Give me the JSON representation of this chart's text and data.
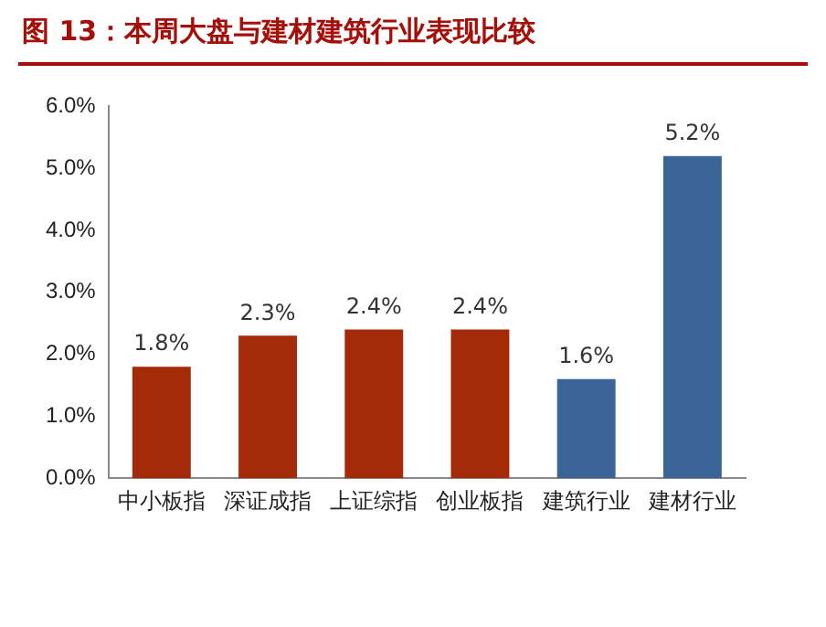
{
  "chart_data": {
    "type": "bar",
    "title": "图 13：本周大盘与建材建筑行业表现比较",
    "categories": [
      "中小板指",
      "深证成指",
      "上证综指",
      "创业板指",
      "建筑行业",
      "建材行业"
    ],
    "values": [
      1.8,
      2.3,
      2.4,
      2.4,
      1.6,
      5.2
    ],
    "colors": [
      "#a52a08",
      "#a52a08",
      "#a52a08",
      "#a52a08",
      "#3b6497",
      "#3b6497"
    ],
    "value_labels": [
      "1.8%",
      "2.3%",
      "2.4%",
      "2.4%",
      "1.6%",
      "5.2%"
    ],
    "ylim": [
      0,
      6
    ],
    "yticks": [
      {
        "value": 0,
        "label": "0.0%"
      },
      {
        "value": 1,
        "label": "1.0%"
      },
      {
        "value": 2,
        "label": "2.0%"
      },
      {
        "value": 3,
        "label": "3.0%"
      },
      {
        "value": 4,
        "label": "4.0%"
      },
      {
        "value": 5,
        "label": "5.0%"
      },
      {
        "value": 6,
        "label": "6.0%"
      }
    ],
    "grid": false,
    "legend": false
  }
}
